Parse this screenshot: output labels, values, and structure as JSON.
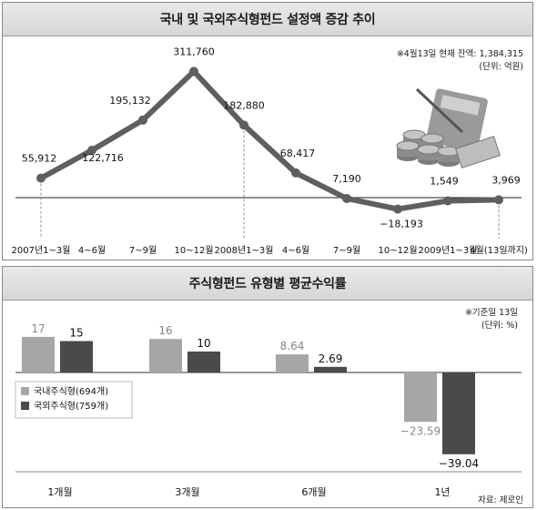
{
  "chart_data": [
    {
      "type": "line",
      "title": "국내 및 국외주식형펀드 설정액 증감 추이",
      "note": "※4월13일 현재 잔액: 1,384,315",
      "unit": "(단위: 억원)",
      "categories": [
        "2007년1~3월",
        "4~6월",
        "7~9월",
        "10~12월",
        "2008년1~3월",
        "4~6월",
        "7~9월",
        "10~12월",
        "2009년1~3월",
        "4월(13일까지)"
      ],
      "values": [
        55912,
        122716,
        195132,
        311760,
        182880,
        68417,
        7190,
        -18193,
        1549,
        3969
      ],
      "labels": [
        "55,912",
        "122,716",
        "195,132",
        "311,760",
        "182,880",
        "68,417",
        "7,190",
        "−18,193",
        "1,549",
        "3,969"
      ],
      "series_color": "#5f5f5f"
    },
    {
      "type": "bar",
      "title": "주식형펀드 유형별 평균수익률",
      "note": "※기준일 13일",
      "unit": "(단위: %)",
      "categories": [
        "1개월",
        "3개월",
        "6개월",
        "1년"
      ],
      "series": [
        {
          "name": "국내주식형(694개)",
          "values": [
            17,
            16,
            8.64,
            -23.59
          ],
          "labels": [
            "17",
            "16",
            "8.64",
            "−23.59"
          ],
          "color": "#a6a6a6"
        },
        {
          "name": "국외주식형(759개)",
          "values": [
            15,
            10,
            2.69,
            -39.04
          ],
          "labels": [
            "15",
            "10",
            "2.69",
            "−39.04"
          ],
          "color": "#4a4a4a"
        }
      ],
      "source": "자료: 제로인"
    }
  ]
}
